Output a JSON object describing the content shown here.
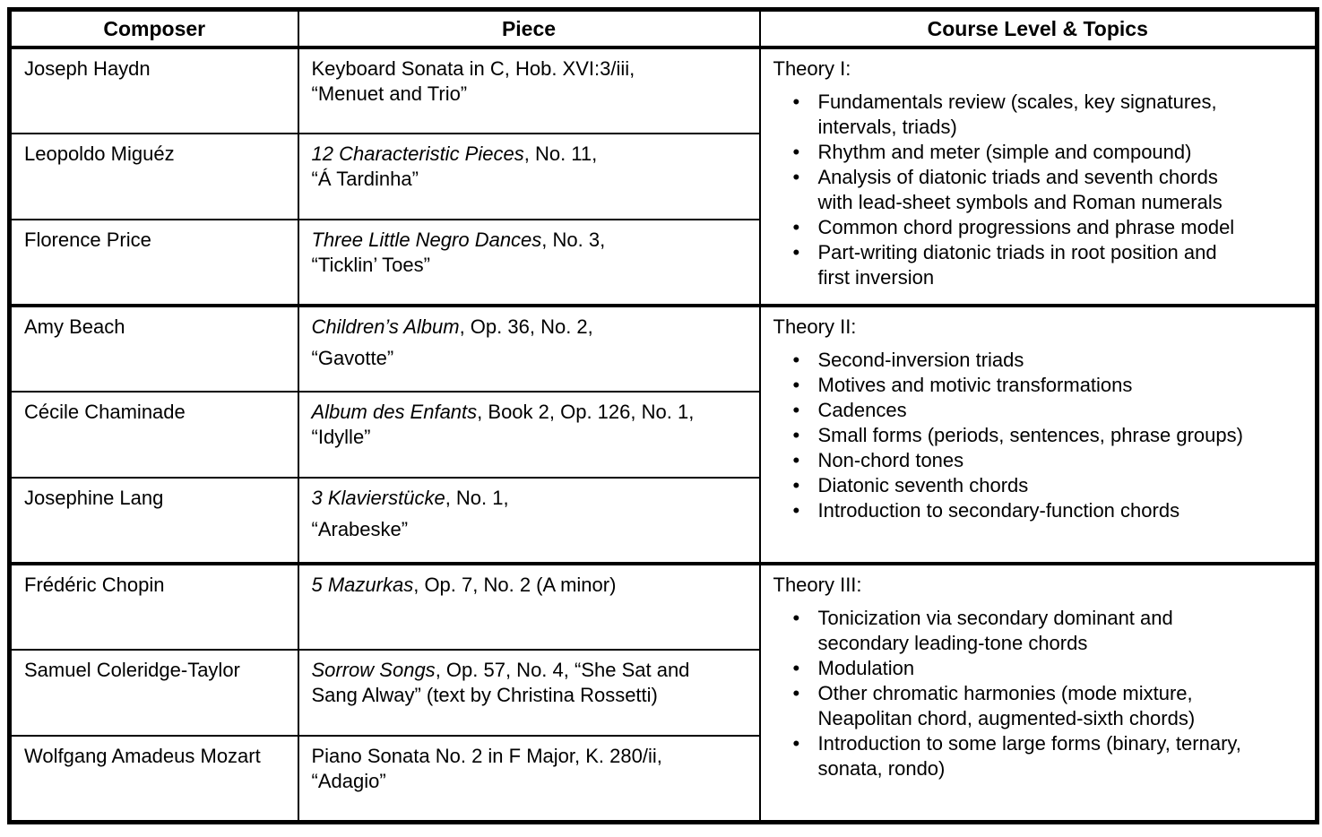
{
  "page": {
    "background_color": "#ffffff",
    "border_color": "#000000",
    "text_color": "#000000"
  },
  "table": {
    "columns": [
      "Composer",
      "Piece",
      "Course Level & Topics"
    ],
    "rows": [
      {
        "composer": "Joseph Haydn",
        "piece_italic": "",
        "piece_rest": "Keyboard Sonata in C, Hob. XVI:3/iii,",
        "piece_line2": "“Menuet and Trio”"
      },
      {
        "composer": "Leopoldo Miguéz",
        "piece_italic": "12 Characteristic Pieces",
        "piece_rest": ", No. 11,",
        "piece_line2": "“Á Tardinha”"
      },
      {
        "composer": "Florence Price",
        "piece_italic": "Three Little Negro Dances",
        "piece_rest": ", No. 3,",
        "piece_line2": "“Ticklin’ Toes”"
      },
      {
        "composer": "Amy Beach",
        "piece_italic": "Children’s Album",
        "piece_rest": ", Op. 36, No. 2,",
        "piece_line2": "“Gavotte”"
      },
      {
        "composer": "Cécile Chaminade",
        "piece_italic": "Album des Enfants",
        "piece_rest": ", Book 2, Op. 126, No. 1,",
        "piece_line2": "“Idylle”"
      },
      {
        "composer": "Josephine Lang",
        "piece_italic": "3 Klavierstücke",
        "piece_rest": ", No. 1,",
        "piece_line2": "“Arabeske”"
      },
      {
        "composer": "Frédéric Chopin",
        "piece_italic": "5 Mazurkas",
        "piece_rest": ", Op. 7, No. 2 (A minor)",
        "piece_line2": ""
      },
      {
        "composer": "Samuel Coleridge-Taylor",
        "piece_italic": "Sorrow Songs",
        "piece_rest": ", Op. 57, No. 4, “She Sat and\nSang Alway” (text by Christina Rossetti)",
        "piece_line2": ""
      },
      {
        "composer": "Wolfgang Amadeus Mozart",
        "piece_italic": "",
        "piece_rest": "Piano Sonata No. 2 in F Major, K. 280/ii,",
        "piece_line2": "“Adagio”"
      }
    ],
    "groups": [
      {
        "heading": "Theory I:",
        "topics": [
          "Fundamentals review (scales, key signatures,\nintervals, triads)",
          "Rhythm and meter (simple and compound)",
          "Analysis of diatonic triads and seventh chords\nwith lead-sheet symbols and Roman numerals",
          "Common chord progressions and phrase model",
          "Part-writing diatonic triads in root position and\nfirst inversion"
        ]
      },
      {
        "heading": "Theory II:",
        "topics": [
          "Second-inversion triads",
          "Motives and motivic transformations",
          "Cadences",
          "Small forms (periods, sentences, phrase groups)",
          "Non-chord tones",
          "Diatonic seventh chords",
          "Introduction to secondary-function chords"
        ]
      },
      {
        "heading": "Theory III:",
        "topics": [
          "Tonicization via secondary dominant and\nsecondary leading-tone chords",
          "Modulation",
          "Other chromatic harmonies (mode mixture,\nNeapolitan chord, augmented-sixth chords)",
          "Introduction to some large forms (binary, ternary,\nsonata, rondo)"
        ]
      }
    ]
  }
}
